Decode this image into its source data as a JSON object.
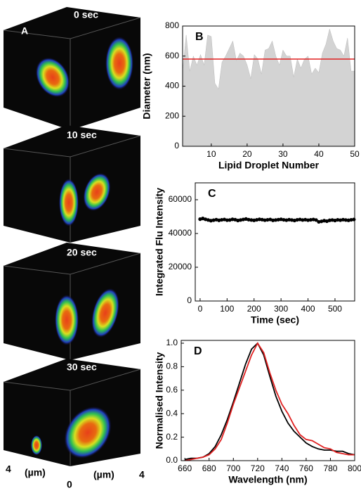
{
  "panel_a": {
    "label": "A",
    "frames": [
      "0 sec",
      "10 sec",
      "20 sec",
      "30 sec"
    ],
    "axis_labels": [
      "4",
      "(µm)",
      "0",
      "(µm)",
      "4"
    ]
  },
  "chart_data": [
    {
      "type": "area",
      "label": "B",
      "xlabel": "Lipid Droplet Number",
      "ylabel": "Diameter (nm)",
      "x": [
        2,
        3,
        4,
        5,
        6,
        7,
        8,
        9,
        10,
        11,
        12,
        13,
        14,
        15,
        16,
        17,
        18,
        19,
        20,
        21,
        22,
        23,
        24,
        25,
        26,
        27,
        28,
        29,
        30,
        31,
        32,
        33,
        34,
        35,
        36,
        37,
        38,
        39,
        40,
        41,
        42,
        43,
        44,
        45,
        46,
        47,
        48,
        49,
        50
      ],
      "series": [
        {
          "color": "#d3d3d3",
          "values": [
            500,
            740,
            500,
            600,
            540,
            610,
            540,
            740,
            730,
            420,
            380,
            560,
            600,
            650,
            700,
            570,
            620,
            600,
            540,
            450,
            610,
            580,
            480,
            640,
            650,
            700,
            600,
            540,
            640,
            600,
            600,
            460,
            580,
            520,
            580,
            600,
            480,
            520,
            490,
            620,
            680,
            780,
            700,
            650,
            640,
            600,
            720,
            500,
            500
          ]
        }
      ],
      "reference_line": {
        "value": 580,
        "color": "#e02020"
      },
      "xlim": [
        2,
        50
      ],
      "ylim": [
        0,
        800
      ],
      "xticks": [
        10,
        20,
        30,
        40,
        50
      ],
      "yticks": [
        0,
        200,
        400,
        600,
        800
      ]
    },
    {
      "type": "scatter",
      "label": "C",
      "xlabel": "Time (sec)",
      "ylabel": "Integrated Flu Intensity",
      "x": [
        0,
        10,
        20,
        30,
        40,
        50,
        60,
        70,
        80,
        90,
        100,
        110,
        120,
        130,
        140,
        150,
        160,
        170,
        180,
        190,
        200,
        210,
        220,
        230,
        240,
        250,
        260,
        270,
        280,
        290,
        300,
        310,
        320,
        330,
        340,
        350,
        360,
        370,
        380,
        390,
        400,
        410,
        420,
        430,
        440,
        450,
        460,
        470,
        480,
        490,
        500,
        510,
        520,
        530,
        540,
        550,
        560,
        570
      ],
      "series": [
        {
          "color": "#000000",
          "values": [
            48500,
            48900,
            48400,
            48000,
            47600,
            47900,
            48200,
            47800,
            48100,
            48300,
            47900,
            48000,
            48400,
            48200,
            47700,
            48000,
            48300,
            48600,
            48200,
            48000,
            47800,
            48100,
            48400,
            48200,
            47900,
            48100,
            48300,
            47800,
            48000,
            48200,
            48400,
            48100,
            47900,
            48200,
            48000,
            47700,
            48100,
            48300,
            48000,
            48200,
            47900,
            48100,
            48300,
            48000,
            46900,
            47200,
            47600,
            47300,
            47800,
            48000,
            47700,
            48100,
            47900,
            48200,
            48000,
            47800,
            48100,
            48300
          ]
        }
      ],
      "xlim": [
        -18,
        573
      ],
      "ylim": [
        0,
        70000
      ],
      "xticks": [
        0,
        100,
        200,
        300,
        400,
        500
      ],
      "yticks": [
        0,
        20000,
        40000,
        60000
      ]
    },
    {
      "type": "line",
      "label": "D",
      "xlabel": "Wavelength (nm)",
      "ylabel": "Normalised Intensity",
      "x": [
        660,
        665,
        670,
        675,
        680,
        685,
        690,
        695,
        700,
        705,
        710,
        715,
        720,
        725,
        730,
        735,
        740,
        745,
        750,
        755,
        760,
        765,
        770,
        775,
        780,
        785,
        790,
        795,
        800
      ],
      "series": [
        {
          "color": "#000000",
          "values": [
            0.01,
            0.02,
            0.02,
            0.03,
            0.06,
            0.12,
            0.22,
            0.35,
            0.5,
            0.66,
            0.82,
            0.95,
            1.0,
            0.9,
            0.72,
            0.55,
            0.42,
            0.32,
            0.25,
            0.2,
            0.15,
            0.12,
            0.1,
            0.09,
            0.09,
            0.08,
            0.08,
            0.06,
            0.05
          ]
        },
        {
          "color": "#e02020",
          "values": [
            0.0,
            0.01,
            0.02,
            0.03,
            0.05,
            0.1,
            0.18,
            0.32,
            0.48,
            0.62,
            0.76,
            0.9,
            1.0,
            0.92,
            0.75,
            0.6,
            0.48,
            0.4,
            0.3,
            0.22,
            0.18,
            0.17,
            0.14,
            0.11,
            0.1,
            0.07,
            0.06,
            0.05,
            0.05
          ]
        }
      ],
      "xlim": [
        657,
        800
      ],
      "ylim": [
        0,
        1.024
      ],
      "xticks": [
        660,
        680,
        700,
        720,
        740,
        760,
        780,
        800
      ],
      "yticks": [
        {
          "value": 0,
          "label": "0.0"
        },
        {
          "value": 0.2,
          "label": "0.2"
        },
        {
          "value": 0.4,
          "label": "0.4"
        },
        {
          "value": 0.6,
          "label": "0.6"
        },
        {
          "value": 0.8,
          "label": "0.8"
        },
        {
          "value": 1,
          "label": "1.0"
        }
      ]
    }
  ]
}
